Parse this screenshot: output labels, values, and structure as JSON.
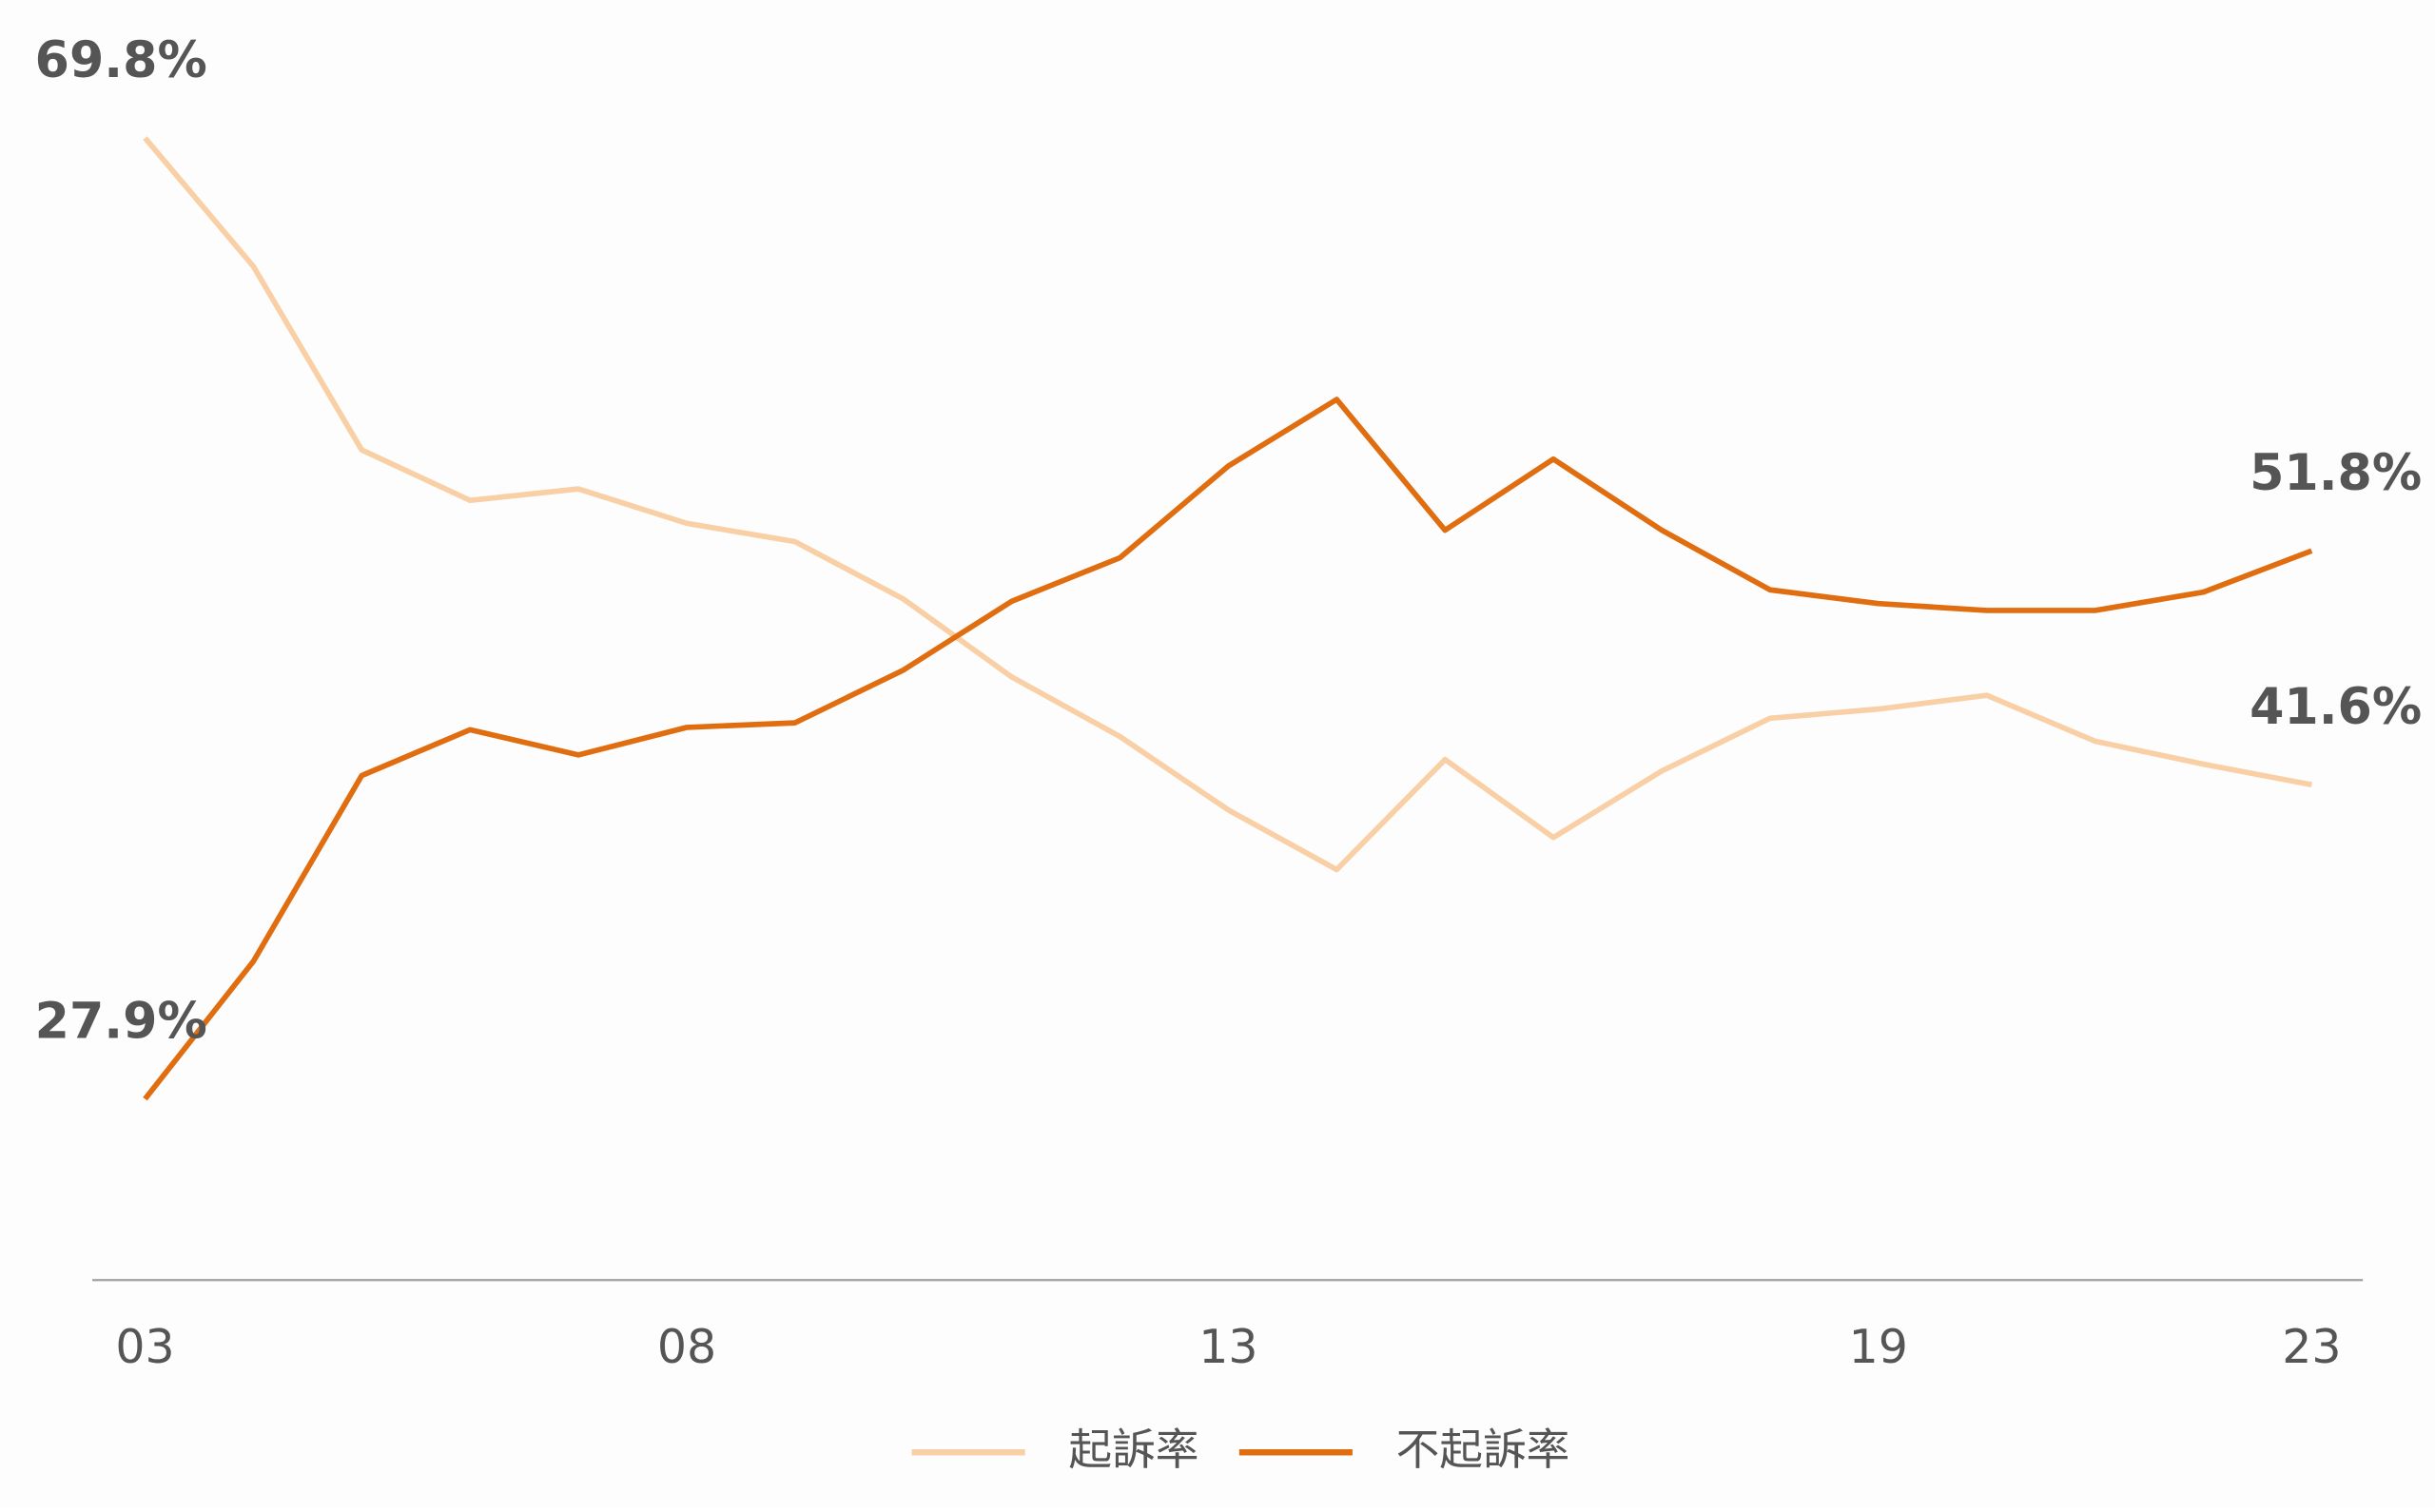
{
  "chart_data": {
    "type": "line",
    "categories": [
      "03",
      null,
      null,
      null,
      null,
      "08",
      null,
      null,
      null,
      null,
      "13",
      null,
      null,
      null,
      null,
      null,
      "19",
      null,
      null,
      null,
      "23"
    ],
    "series": [
      {
        "name": "起訴率",
        "color": "#f9cfa6",
        "values": [
          69.8,
          64.2,
          56.2,
          54.0,
          54.5,
          53.0,
          52.2,
          49.7,
          46.3,
          43.7,
          40.5,
          37.9,
          42.7,
          39.3,
          42.2,
          44.5,
          44.9,
          45.5,
          43.5,
          42.5,
          41.6
        ],
        "value_labels": [
          "69.8%",
          null,
          null,
          null,
          null,
          null,
          null,
          null,
          null,
          null,
          null,
          null,
          null,
          null,
          null,
          null,
          null,
          null,
          null,
          null,
          "41.6%"
        ]
      },
      {
        "name": "不起訴率",
        "color": "#e06e10",
        "values": [
          27.9,
          33.9,
          42.0,
          44.0,
          42.9,
          44.1,
          44.3,
          46.6,
          49.6,
          51.5,
          55.5,
          58.4,
          52.7,
          55.8,
          52.7,
          50.1,
          49.5,
          49.2,
          49.2,
          50.0,
          51.8
        ],
        "value_labels": [
          "27.9%",
          null,
          null,
          null,
          null,
          null,
          null,
          null,
          null,
          null,
          null,
          null,
          null,
          null,
          null,
          null,
          null,
          null,
          null,
          null,
          "51.8%"
        ]
      }
    ],
    "ylim": [
      20,
      70
    ],
    "legend": "bottom"
  }
}
